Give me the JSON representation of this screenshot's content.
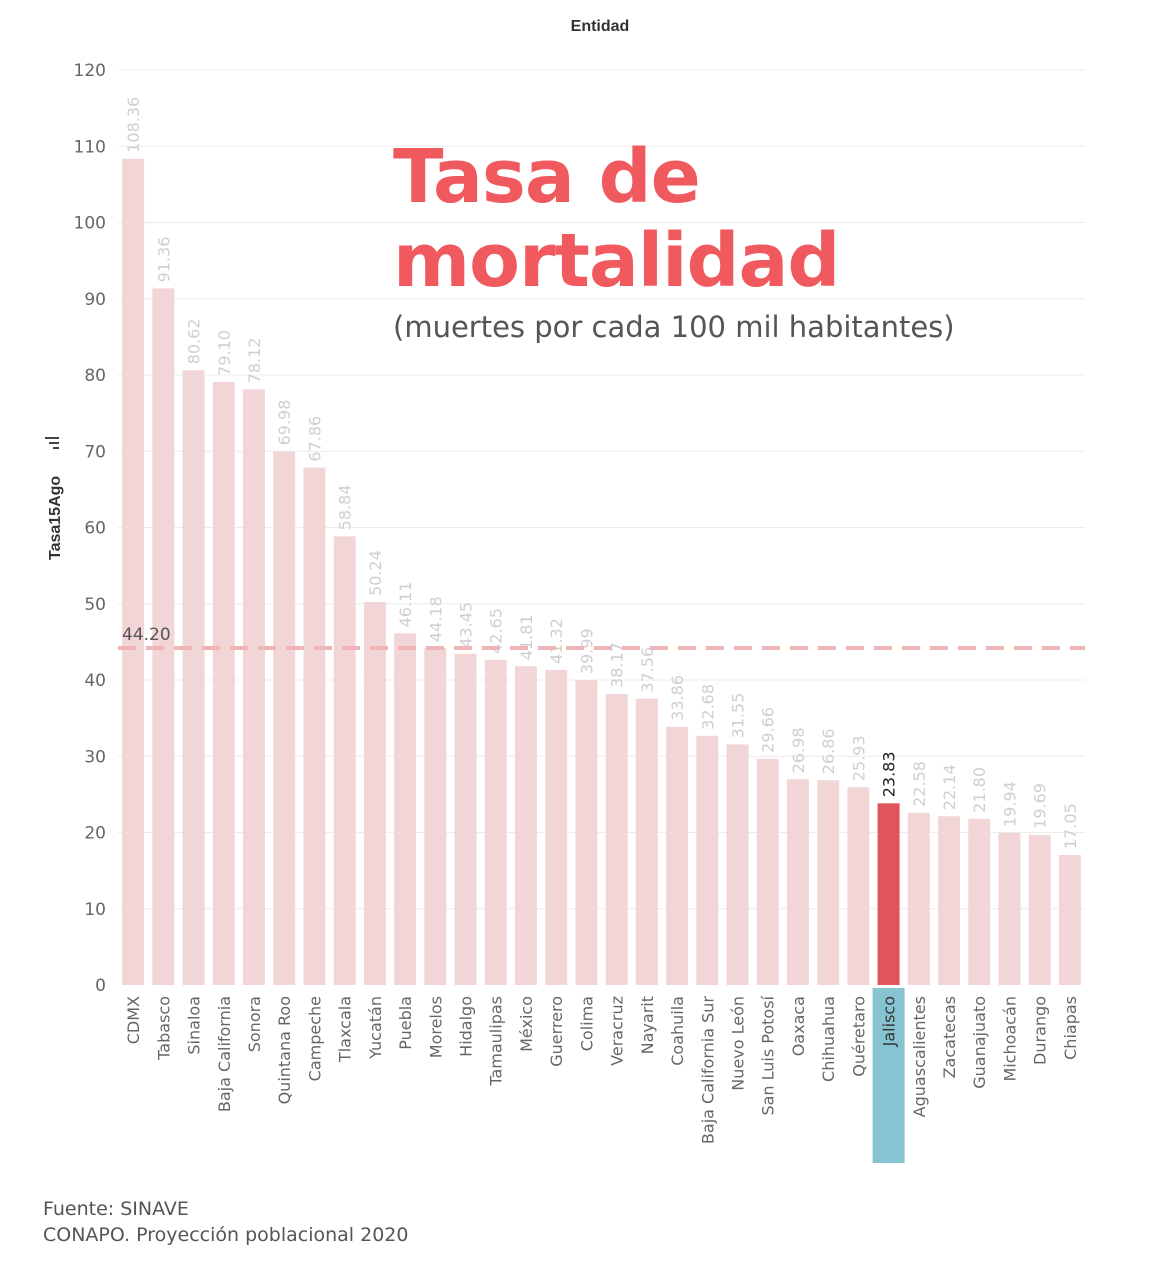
{
  "header": {
    "x_axis_title": "Entidad"
  },
  "overlay": {
    "title_line1": "Tasa de",
    "title_line2": "mortalidad",
    "subtitle": "(muertes por cada 100 mil habitantes)"
  },
  "footer": {
    "source_line1": "Fuente: SINAVE",
    "source_line2": "CONAPO. Proyección poblacional 2020"
  },
  "colors": {
    "bar": "#f2d6d7",
    "highlight_bar": "#e0555c",
    "highlight_label_bg": "#86c4d1",
    "reference_line": "#f0b4b6",
    "grid": "#ececec",
    "title": "#f05a5f"
  },
  "chart_data": {
    "type": "bar",
    "ylabel": "Tasa15Ago",
    "xlabel": "Entidad",
    "ylim": [
      0,
      120
    ],
    "yticks": [
      0,
      10,
      20,
      30,
      40,
      50,
      60,
      70,
      80,
      90,
      100,
      110,
      120
    ],
    "grid": true,
    "highlight": "Jalisco",
    "reference_line": {
      "value": 44.2,
      "label": "44.20"
    },
    "categories": [
      "CDMX",
      "Tabasco",
      "Sinaloa",
      "Baja California",
      "Sonora",
      "Quintana Roo",
      "Campeche",
      "Tlaxcala",
      "Yucatán",
      "Puebla",
      "Morelos",
      "Hidalgo",
      "Tamaulipas",
      "México",
      "Guerrero",
      "Colima",
      "Veracruz",
      "Nayarit",
      "Coahuila",
      "Baja California Sur",
      "Nuevo León",
      "San Luis Potosí",
      "Oaxaca",
      "Chihuahua",
      "Quéretaro",
      "Jalisco",
      "Aguascalientes",
      "Zacatecas",
      "Guanajuato",
      "Michoacán",
      "Durango",
      "Chiapas"
    ],
    "values": [
      108.36,
      91.36,
      80.62,
      79.1,
      78.12,
      69.98,
      67.86,
      58.84,
      50.24,
      46.11,
      44.18,
      43.45,
      42.65,
      41.81,
      41.32,
      39.99,
      38.17,
      37.56,
      33.86,
      32.68,
      31.55,
      29.66,
      26.98,
      26.86,
      25.93,
      23.83,
      22.58,
      22.14,
      21.8,
      19.94,
      19.69,
      17.05
    ],
    "value_labels": [
      "108.36",
      "91.36",
      "80.62",
      "79.10",
      "78.12",
      "69.98",
      "67.86",
      "58.84",
      "50.24",
      "46.11",
      "44.18",
      "43.45",
      "42.65",
      "41.81",
      "41.32",
      "39.99",
      "38.17",
      "37.56",
      "33.86",
      "32.68",
      "31.55",
      "29.66",
      "26.98",
      "26.86",
      "25.93",
      "23.83",
      "22.58",
      "22.14",
      "21.80",
      "19.94",
      "19.69",
      "17.05"
    ]
  }
}
